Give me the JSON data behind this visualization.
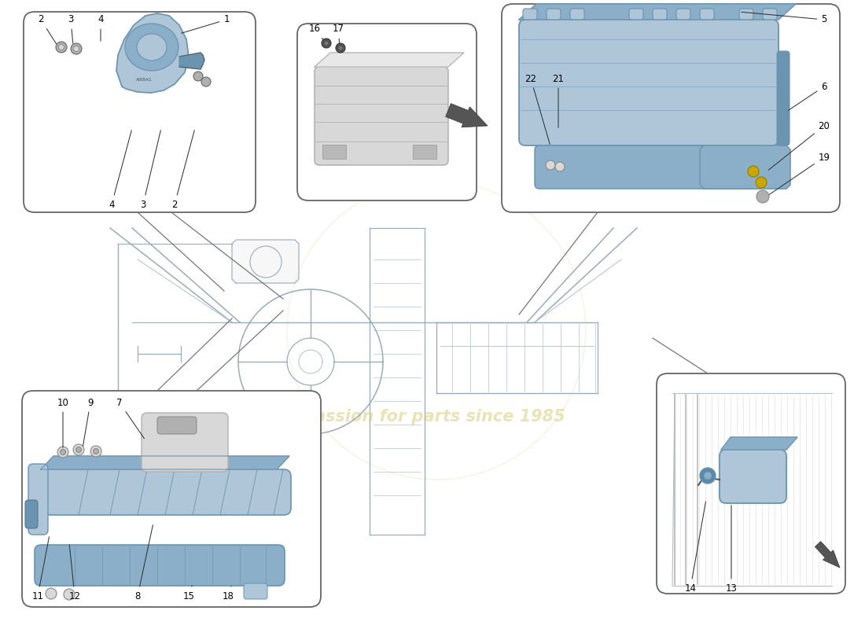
{
  "bg_color": "#ffffff",
  "blue_light": "#aec6d8",
  "blue_mid": "#8bafc8",
  "blue_dark": "#6a94b0",
  "grey_light": "#d8d8d8",
  "grey_mid": "#b0b0b0",
  "grey_dark": "#888888",
  "sketch_color": "#9aacb8",
  "line_color": "#444444",
  "box_line": "#666666",
  "watermark_color": "#d4c870",
  "label_fontsize": 8.5,
  "anno_lw": 0.7
}
